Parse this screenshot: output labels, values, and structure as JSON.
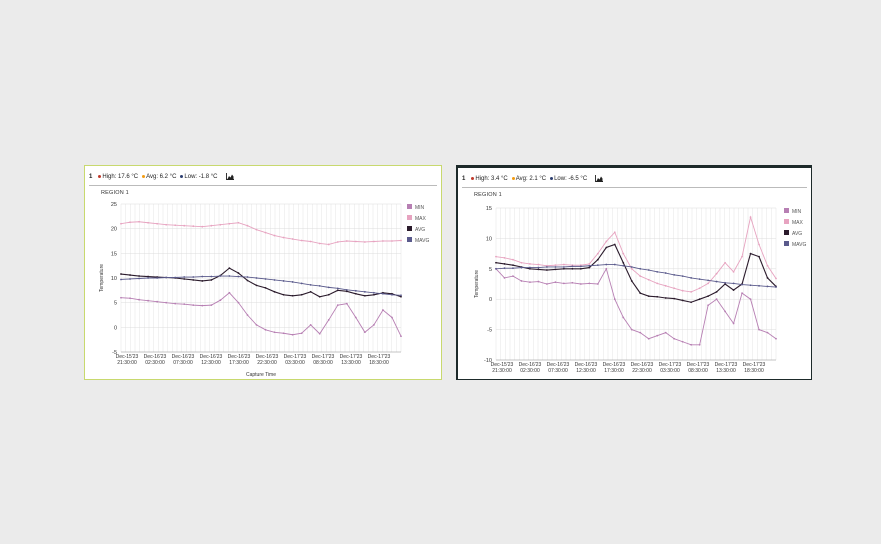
{
  "panels": [
    {
      "header": {
        "number": "1",
        "high": "High: 17.6 °C",
        "avg": "Avg: 6.2 °C",
        "low": "Low: -1.8 °C",
        "high_color": "#c0392b",
        "avg_color": "#f39c12",
        "low_color": "#2c3e70"
      },
      "region": "REGION 1",
      "chart_data": {
        "type": "line",
        "xlabel": "Capture Time",
        "ylabel": "Temperature",
        "ylim": [
          -5,
          25
        ],
        "yticks": [
          "25",
          "20",
          "15",
          "10",
          "5",
          "0",
          "-5"
        ],
        "xticks": [
          [
            "Dec-15'23",
            "21:30:00"
          ],
          [
            "Dec-16'23",
            "02:30:00"
          ],
          [
            "Dec-16'23",
            "07:30:00"
          ],
          [
            "Dec-16'23",
            "12:30:00"
          ],
          [
            "Dec-16'23",
            "17:30:00"
          ],
          [
            "Dec-16'23",
            "22:30:00"
          ],
          [
            "Dec-17'23",
            "03:30:00"
          ],
          [
            "Dec-17'23",
            "08:30:00"
          ],
          [
            "Dec-17'23",
            "13:30:00"
          ],
          [
            "Dec-17'23",
            "18:30:00"
          ]
        ],
        "grid": true,
        "legend_position": "right",
        "series": [
          {
            "name": "MIN",
            "color": "#b77fb3",
            "values": [
              6,
              5.9,
              5.6,
              5.4,
              5.2,
              5,
              4.8,
              4.7,
              4.5,
              4.4,
              4.5,
              5.5,
              7,
              5,
              2.5,
              0.5,
              -0.5,
              -1,
              -1.2,
              -1.5,
              -1.2,
              0.5,
              -1.3,
              1.5,
              4.5,
              4.8,
              2,
              -1,
              0.5,
              3.5,
              2,
              -1.8
            ]
          },
          {
            "name": "MAX",
            "color": "#e7a3c0",
            "values": [
              21,
              21.3,
              21.4,
              21.2,
              21,
              20.8,
              20.7,
              20.6,
              20.5,
              20.4,
              20.6,
              20.8,
              21,
              21.2,
              20.6,
              19.8,
              19.2,
              18.6,
              18.2,
              17.9,
              17.6,
              17.4,
              17,
              16.8,
              17.3,
              17.5,
              17.4,
              17.3,
              17.4,
              17.5,
              17.5,
              17.6
            ]
          },
          {
            "name": "AVG",
            "color": "#2b1b2c",
            "values": [
              10.8,
              10.6,
              10.4,
              10.3,
              10.2,
              10.1,
              10,
              9.8,
              9.6,
              9.4,
              9.6,
              10.5,
              12,
              11,
              9.5,
              8.5,
              8,
              7.2,
              6.6,
              6.4,
              6.6,
              7.2,
              6.2,
              6.6,
              7.5,
              7.3,
              6.8,
              6.4,
              6.6,
              7,
              6.8,
              6.2
            ]
          },
          {
            "name": "MAVG",
            "color": "#5a5a8c",
            "values": [
              9.7,
              9.8,
              9.9,
              10,
              10,
              10.1,
              10.1,
              10.2,
              10.2,
              10.3,
              10.3,
              10.4,
              10.4,
              10.3,
              10.2,
              10,
              9.8,
              9.6,
              9.4,
              9.2,
              8.9,
              8.6,
              8.4,
              8.1,
              7.9,
              7.6,
              7.4,
              7.2,
              7,
              6.8,
              6.6,
              6.5
            ]
          }
        ]
      }
    },
    {
      "header": {
        "number": "1",
        "high": "High: 3.4 °C",
        "avg": "Avg: 2.1 °C",
        "low": "Low: -6.5 °C",
        "high_color": "#c0392b",
        "avg_color": "#f39c12",
        "low_color": "#2c3e70"
      },
      "region": "REGION 1",
      "chart_data": {
        "type": "line",
        "xlabel": "",
        "ylabel": "Temperature",
        "ylim": [
          -10,
          15
        ],
        "yticks": [
          "15",
          "10",
          "5",
          "0",
          "-5",
          "-10"
        ],
        "xticks": [
          [
            "Dec-15'23",
            "21:30:00"
          ],
          [
            "Dec-16'23",
            "02:30:00"
          ],
          [
            "Dec-16'23",
            "07:30:00"
          ],
          [
            "Dec-16'23",
            "12:30:00"
          ],
          [
            "Dec-16'23",
            "17:30:00"
          ],
          [
            "Dec-16'23",
            "22:30:00"
          ],
          [
            "Dec-17'23",
            "03:30:00"
          ],
          [
            "Dec-17'23",
            "08:30:00"
          ],
          [
            "Dec-17'23",
            "13:30:00"
          ],
          [
            "Dec-17'23",
            "18:30:00"
          ]
        ],
        "grid": true,
        "legend_position": "right",
        "series": [
          {
            "name": "MIN",
            "color": "#b77fb3",
            "values": [
              5,
              3.5,
              3.8,
              3,
              2.8,
              2.9,
              2.5,
              2.8,
              2.6,
              2.7,
              2.5,
              2.6,
              2.5,
              5,
              0,
              -3,
              -5,
              -5.5,
              -6.5,
              -6,
              -5.5,
              -6.5,
              -7,
              -7.5,
              -7.5,
              -1,
              0,
              -2,
              -4,
              1,
              0,
              -5,
              -5.5,
              -6.5
            ]
          },
          {
            "name": "MAX",
            "color": "#e7a3c0",
            "values": [
              7,
              6.8,
              6.5,
              6,
              5.8,
              5.7,
              5.5,
              5.6,
              5.7,
              5.6,
              5.6,
              5.8,
              7.5,
              9.5,
              11,
              7.5,
              5,
              3.8,
              3.2,
              2.6,
              2.2,
              1.8,
              1.4,
              1.2,
              1.8,
              2.6,
              4.2,
              6,
              4.5,
              7,
              13.5,
              9,
              5.5,
              3.4
            ]
          },
          {
            "name": "AVG",
            "color": "#2b1b2c",
            "values": [
              6,
              5.8,
              5.6,
              5.3,
              5,
              4.9,
              4.8,
              4.9,
              5,
              5,
              5,
              5.2,
              6.5,
              8.5,
              9,
              6,
              3,
              1,
              0.5,
              0.4,
              0.2,
              0.1,
              -0.2,
              -0.5,
              0,
              0.5,
              1.2,
              2.5,
              1.5,
              2.5,
              7.5,
              7,
              3.5,
              2.1
            ]
          },
          {
            "name": "MAVG",
            "color": "#5a5a8c",
            "values": [
              5,
              5.1,
              5.1,
              5.2,
              5.2,
              5.2,
              5.3,
              5.3,
              5.3,
              5.4,
              5.4,
              5.5,
              5.6,
              5.7,
              5.7,
              5.5,
              5.3,
              5,
              4.8,
              4.5,
              4.3,
              4,
              3.8,
              3.5,
              3.3,
              3.1,
              2.9,
              2.7,
              2.6,
              2.4,
              2.3,
              2.2,
              2.1,
              2
            ]
          }
        ]
      }
    }
  ]
}
